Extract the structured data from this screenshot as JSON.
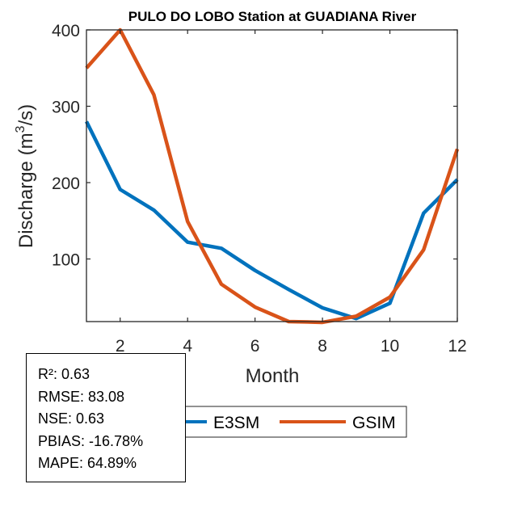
{
  "chart_data": {
    "type": "line",
    "title": "PULO DO LOBO  Station at  GUADIANA  River",
    "xlabel": "Month",
    "ylabel": "Discharge (m³/s)",
    "ylabel_parts": {
      "main": "Discharge (m",
      "sup": "3",
      "tail": "/s)"
    },
    "xlim": [
      1,
      12
    ],
    "ylim": [
      18,
      400
    ],
    "xticks": [
      2,
      4,
      6,
      8,
      10,
      12
    ],
    "yticks": [
      100,
      200,
      300,
      400
    ],
    "grid": false,
    "x": [
      1,
      2,
      3,
      4,
      5,
      6,
      7,
      8,
      9,
      10,
      11,
      12
    ],
    "series": [
      {
        "name": "E3SM",
        "color": "#0072BD",
        "values": [
          280,
          191,
          164,
          122,
          114,
          85,
          60,
          36,
          22,
          42,
          160,
          204
        ]
      },
      {
        "name": "GSIM",
        "color": "#D95319",
        "values": [
          350,
          400,
          315,
          149,
          67,
          37,
          18,
          17,
          25,
          50,
          112,
          244
        ]
      }
    ],
    "legend_placement": "bottom-outside",
    "legend": [
      "E3SM",
      "GSIM"
    ]
  },
  "stats": {
    "lines": [
      "R²: 0.63",
      "RMSE: 83.08",
      "NSE: 0.63",
      "PBIAS: -16.78%",
      "MAPE: 64.89%"
    ]
  }
}
